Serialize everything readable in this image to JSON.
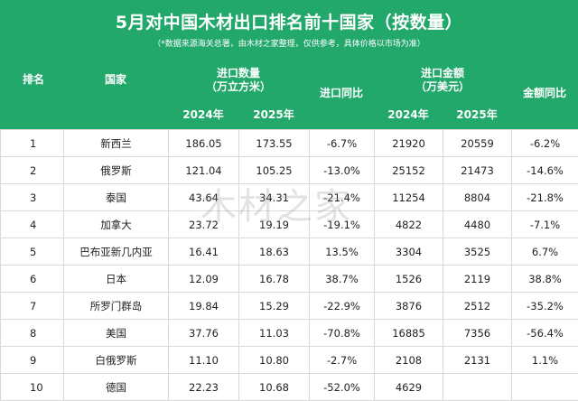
{
  "title": "5月对中国木材出口排名前十国家（按数量）",
  "subtitle": "（*数据来源海关总署，由木材之家整理，仅供参考，具体价格以市场为准）",
  "headers": {
    "rank": "排名",
    "country": "国家",
    "qty_line1": "进口数量",
    "qty_line2": "（万立方米）",
    "qty_yoy": "进口同比",
    "amt_line1": "进口金额",
    "amt_line2": "（万美元）",
    "amt_yoy": "金额同比",
    "y2024": "2024年",
    "y2025": "2025年",
    "y2024b": "2024年",
    "y2025b": "2025年"
  },
  "watermark": "木材之家",
  "rows": [
    {
      "rank": "1",
      "country": "新西兰",
      "q2024": "186.05",
      "q2025": "173.55",
      "qyoy": "-6.7%",
      "a2024": "21920",
      "a2025": "20559",
      "ayoy": "-6.2%"
    },
    {
      "rank": "2",
      "country": "俄罗斯",
      "q2024": "121.04",
      "q2025": "105.25",
      "qyoy": "-13.0%",
      "a2024": "25152",
      "a2025": "21473",
      "ayoy": "-14.6%"
    },
    {
      "rank": "3",
      "country": "泰国",
      "q2024": "43.64",
      "q2025": "34.31",
      "qyoy": "-21.4%",
      "a2024": "11254",
      "a2025": "8804",
      "ayoy": "-21.8%"
    },
    {
      "rank": "4",
      "country": "加拿大",
      "q2024": "23.72",
      "q2025": "19.19",
      "qyoy": "-19.1%",
      "a2024": "4822",
      "a2025": "4480",
      "ayoy": "-7.1%"
    },
    {
      "rank": "5",
      "country": "巴布亚新几内亚",
      "q2024": "16.41",
      "q2025": "18.63",
      "qyoy": "13.5%",
      "a2024": "3304",
      "a2025": "3525",
      "ayoy": "6.7%"
    },
    {
      "rank": "6",
      "country": "日本",
      "q2024": "12.09",
      "q2025": "16.78",
      "qyoy": "38.7%",
      "a2024": "1526",
      "a2025": "2119",
      "ayoy": "38.8%"
    },
    {
      "rank": "7",
      "country": "所罗门群岛",
      "q2024": "19.84",
      "q2025": "15.29",
      "qyoy": "-22.9%",
      "a2024": "3876",
      "a2025": "2512",
      "ayoy": "-35.2%"
    },
    {
      "rank": "8",
      "country": "美国",
      "q2024": "37.76",
      "q2025": "11.03",
      "qyoy": "-70.8%",
      "a2024": "16885",
      "a2025": "7356",
      "ayoy": "-56.4%"
    },
    {
      "rank": "9",
      "country": "白俄罗斯",
      "q2024": "11.10",
      "q2025": "10.80",
      "qyoy": "-2.7%",
      "a2024": "2108",
      "a2025": "2131",
      "ayoy": "1.1%"
    },
    {
      "rank": "10",
      "country": "德国",
      "q2024": "22.23",
      "q2025": "10.68",
      "qyoy": "-52.0%",
      "a2024": "4629",
      "a2025": "",
      "ayoy": ""
    }
  ],
  "colors": {
    "header_bg": "#22a86b",
    "negative": "#1f9a60",
    "positive": "#e02020"
  }
}
